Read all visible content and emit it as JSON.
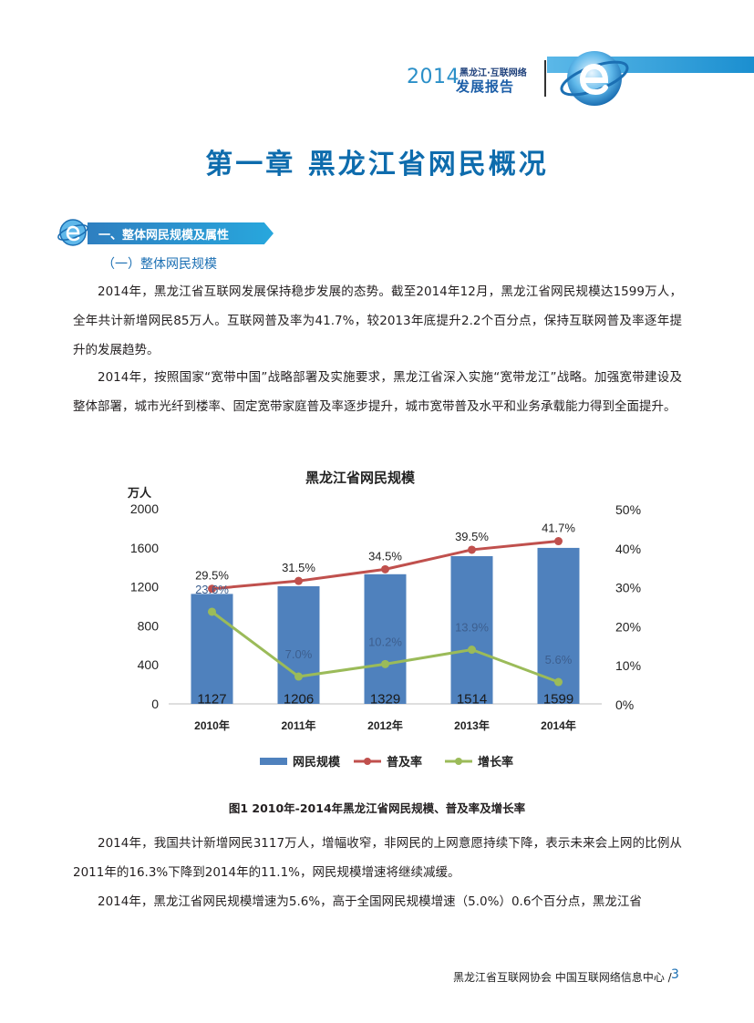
{
  "header": {
    "year": "2014",
    "line1": "黑龙江·互联网络",
    "line2": "发展报告"
  },
  "chapter_title": "第一章  黑龙江省网民概况",
  "section_title": "一、整体网民规模及属性",
  "subsection_title": "（一）整体网民规模",
  "paragraphs": [
    "2014年，黑龙江省互联网发展保持稳步发展的态势。截至2014年12月，黑龙江省网民规模达1599万人，全年共计新增网民85万人。互联网普及率为41.7%，较2013年底提升2.2个百分点，保持互联网普及率逐年提升的发展趋势。",
    "2014年，按照国家“宽带中国”战略部署及实施要求，黑龙江省深入实施“宽带龙江”战略。加强宽带建设及整体部署，城市光纤到楼率、固定宽带家庭普及率逐步提升，城市宽带普及水平和业务承载能力得到全面提升。",
    "2014年，我国共计新增网民3117万人，增幅收窄，非网民的上网意愿持续下降，表示未来会上网的比例从2011年的16.3%下降到2014年的11.1%，网民规模增速将继续减缓。",
    "2014年，黑龙江省网民规模增速为5.6%，高于全国网民规模增速（5.0%）0.6个百分点，黑龙江省"
  ],
  "chart_data": {
    "type": "bar",
    "title": "黑龙江省网民规模",
    "ylabel": "万人",
    "categories": [
      "2010年",
      "2011年",
      "2012年",
      "2013年",
      "2014年"
    ],
    "left_axis": {
      "ticks": [
        "0",
        "400",
        "800",
        "1200",
        "1600",
        "2000"
      ],
      "ylim": [
        0,
        2000
      ]
    },
    "right_axis": {
      "ticks": [
        "0%",
        "10%",
        "20%",
        "30%",
        "40%",
        "50%"
      ],
      "ylim": [
        0,
        50
      ]
    },
    "series": [
      {
        "name": "网民规模",
        "type": "bar",
        "axis": "left",
        "values": [
          1127,
          1206,
          1329,
          1514,
          1599
        ],
        "labels": [
          "1127",
          "1206",
          "1329",
          "1514",
          "1599"
        ],
        "color": "#4f81bd"
      },
      {
        "name": "普及率",
        "type": "line",
        "axis": "right",
        "values": [
          29.5,
          31.5,
          34.5,
          39.5,
          41.7
        ],
        "labels": [
          "29.5%",
          "31.5%",
          "34.5%",
          "39.5%",
          "41.7%"
        ],
        "color": "#c0504d"
      },
      {
        "name": "增长率",
        "type": "line",
        "axis": "right",
        "values": [
          23.6,
          7.0,
          10.2,
          13.9,
          5.6
        ],
        "labels": [
          "23.6%",
          "7.0%",
          "10.2%",
          "13.9%",
          "5.6%"
        ],
        "color": "#9bbb59"
      }
    ],
    "legend": "bottom",
    "grid": false
  },
  "figure_caption": "图1  2010年-2014年黑龙江省网民规模、普及率及增长率",
  "footer": {
    "org": "黑龙江省互联网协会   中国互联网络信息中心 /",
    "page": "3"
  }
}
